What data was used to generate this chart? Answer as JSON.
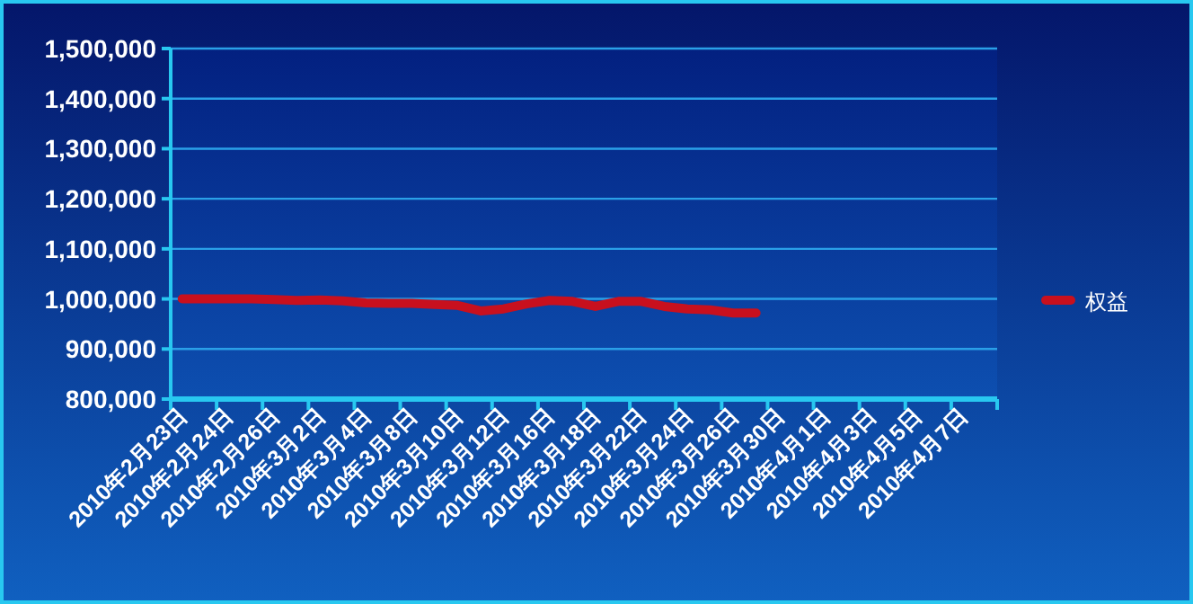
{
  "chart_data": {
    "type": "line",
    "categories": [
      "2010年2月23日",
      null,
      "2010年2月24日",
      null,
      "2010年2月26日",
      null,
      "2010年3月2日",
      null,
      "2010年3月4日",
      null,
      "2010年3月8日",
      null,
      "2010年3月10日",
      null,
      "2010年3月12日",
      null,
      "2010年3月16日",
      null,
      "2010年3月18日",
      null,
      "2010年3月22日",
      null,
      "2010年3月24日",
      null,
      "2010年3月26日",
      null,
      "2010年3月30日",
      null,
      "2010年4月1日",
      null,
      "2010年4月3日",
      null,
      "2010年4月5日",
      null,
      "2010年4月7日",
      null
    ],
    "series": [
      {
        "name": "权益",
        "color": "#c8101e",
        "values": [
          1000000,
          1000000,
          1000000,
          1000000,
          999000,
          997000,
          998000,
          996000,
          992000,
          991000,
          991000,
          989000,
          987000,
          976000,
          980000,
          990000,
          997000,
          995000,
          985000,
          995000,
          995000,
          985000,
          980000,
          978000,
          972000,
          972000,
          null,
          null,
          null,
          null,
          null,
          null,
          null,
          null,
          null,
          null
        ]
      }
    ],
    "ylim": [
      800000,
      1500000
    ],
    "yticks": [
      {
        "value": 800000,
        "label": "800,000"
      },
      {
        "value": 900000,
        "label": "900,000"
      },
      {
        "value": 1000000,
        "label": "1,000,000"
      },
      {
        "value": 1100000,
        "label": "1,100,000"
      },
      {
        "value": 1200000,
        "label": "1,200,000"
      },
      {
        "value": 1300000,
        "label": "1,300,000"
      },
      {
        "value": 1400000,
        "label": "1,400,000"
      },
      {
        "value": 1500000,
        "label": "1,500,000"
      }
    ],
    "grid": "y",
    "legend": "right",
    "line_style": "solid"
  }
}
